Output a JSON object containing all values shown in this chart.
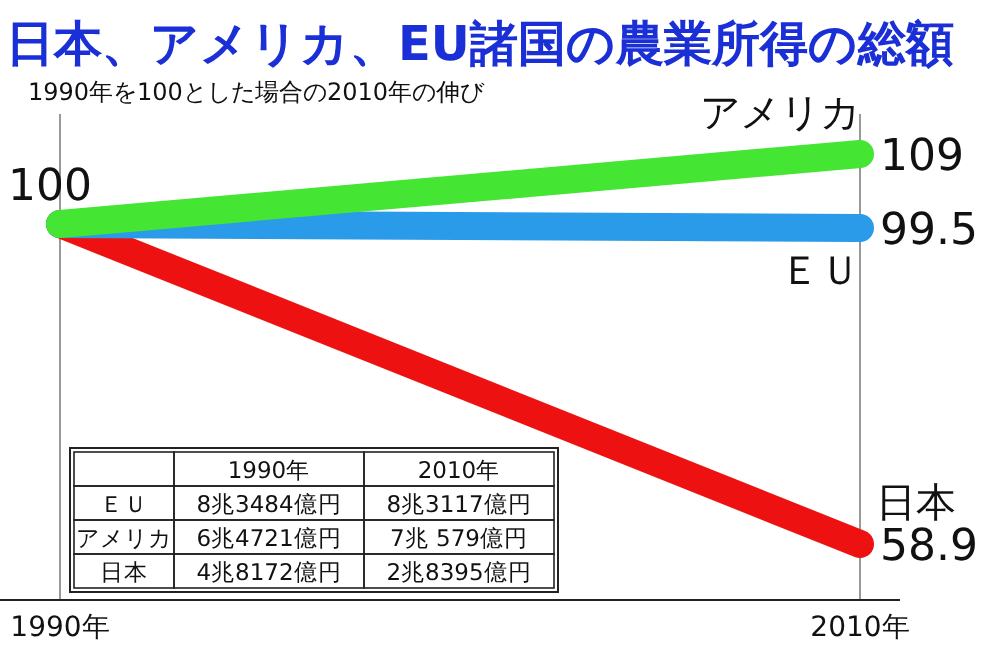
{
  "chart_data": {
    "type": "line",
    "title": "日本、アメリカ、EU諸国の農業所得の総額",
    "subtitle": "1990年を100とした場合の2010年の伸び",
    "categories": [
      "1990年",
      "2010年"
    ],
    "series": [
      {
        "name": "アメリカ",
        "color": "#44e633",
        "values": [
          100,
          109
        ],
        "value_labels": [
          "100",
          "109"
        ]
      },
      {
        "name": "ＥＵ",
        "color": "#2a9be8",
        "values": [
          100,
          99.5
        ],
        "value_labels": [
          null,
          "99.5"
        ]
      },
      {
        "name": "日本",
        "color": "#ee1111",
        "values": [
          100,
          58.9
        ],
        "value_labels": [
          null,
          "58.9"
        ]
      }
    ],
    "grid": "x",
    "legend": false,
    "marker": "none",
    "line_style": "solid",
    "annotations": [
      "1990年",
      "2010年",
      "ＥＵ",
      "8兆3484億円",
      "8兆3117億円",
      "アメリカ",
      "6兆4721億円",
      "7兆 579億円",
      "日本",
      "4兆8172億円",
      "2兆8395億円"
    ]
  }
}
